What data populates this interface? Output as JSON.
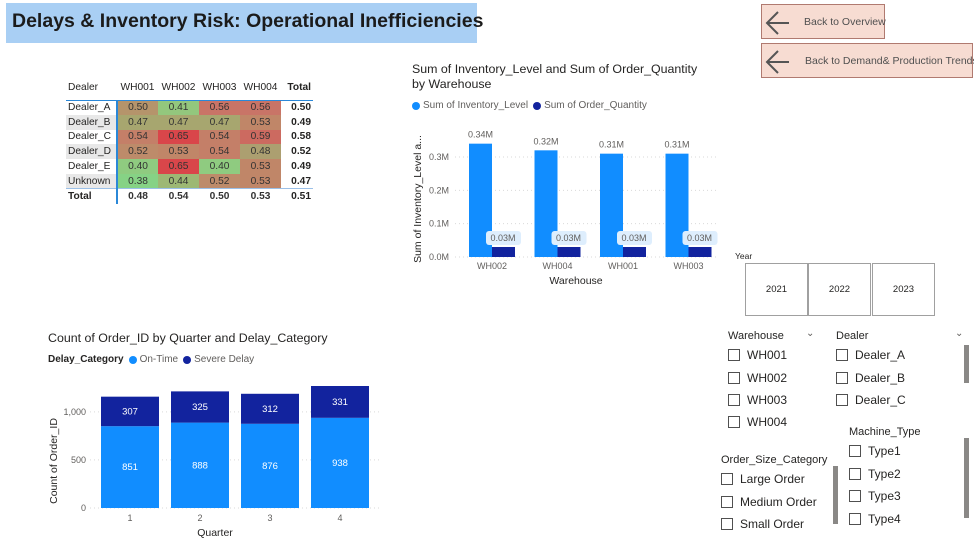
{
  "page": {
    "title": "Delays & Inventory Risk: Operational Inefficiencies"
  },
  "nav": {
    "back_overview": "Back to Overview",
    "back_demand": "Back to Demand& Production Trends"
  },
  "matrix": {
    "headers": [
      "Dealer",
      "WH001",
      "WH002",
      "WH003",
      "WH004",
      "Total"
    ],
    "rows": [
      {
        "label": "Dealer_A",
        "values": [
          "0.50",
          "0.41",
          "0.56",
          "0.56"
        ],
        "colors": [
          "#b5946b",
          "#93c77d",
          "#c97467",
          "#c97467"
        ],
        "total": "0.50"
      },
      {
        "label": "Dealer_B",
        "values": [
          "0.47",
          "0.47",
          "0.47",
          "0.53"
        ],
        "colors": [
          "#a7a66f",
          "#a7a66f",
          "#a7a66f",
          "#c08668"
        ],
        "total": "0.49"
      },
      {
        "label": "Dealer_C",
        "values": [
          "0.54",
          "0.65",
          "0.54",
          "0.59"
        ],
        "colors": [
          "#c47f68",
          "#d9464a",
          "#c47f68",
          "#cc6a60"
        ],
        "total": "0.58"
      },
      {
        "label": "Dealer_D",
        "values": [
          "0.52",
          "0.53",
          "0.54",
          "0.48"
        ],
        "colors": [
          "#bd8b6a",
          "#c08668",
          "#c47f68",
          "#ac9f70"
        ],
        "total": "0.52"
      },
      {
        "label": "Dealer_E",
        "values": [
          "0.40",
          "0.65",
          "0.40",
          "0.53"
        ],
        "colors": [
          "#8fcb80",
          "#d9464a",
          "#8fcb80",
          "#c08668"
        ],
        "total": "0.49"
      },
      {
        "label": "Unknown",
        "values": [
          "0.38",
          "0.44",
          "0.52",
          "0.53"
        ],
        "colors": [
          "#86d285",
          "#9db874",
          "#bd8b6a",
          "#c08668"
        ],
        "total": "0.47"
      }
    ],
    "total_row": {
      "label": "Total",
      "values": [
        "0.48",
        "0.54",
        "0.50",
        "0.53"
      ],
      "total": "0.51"
    }
  },
  "inventory_chart": {
    "title": "Sum of Inventory_Level and Sum of Order_Quantity by Warehouse",
    "legend": [
      "Sum of Inventory_Level",
      "Sum of Order_Quantity"
    ],
    "ylabel": "Sum of Inventory_Level a...",
    "xlabel": "Warehouse"
  },
  "orders_chart": {
    "title": "Count of Order_ID by Quarter and Delay_Category",
    "legend_title": "Delay_Category",
    "legend": [
      "On-Time",
      "Severe Delay"
    ],
    "ylabel": "Count of Order_ID",
    "xlabel": "Quarter"
  },
  "chart_data": [
    {
      "type": "bar",
      "title": "Sum of Inventory_Level and Sum of Order_Quantity by Warehouse",
      "xlabel": "Warehouse",
      "ylabel": "Sum of Inventory_Level a...",
      "categories": [
        "WH002",
        "WH004",
        "WH001",
        "WH003"
      ],
      "series": [
        {
          "name": "Sum of Inventory_Level",
          "values": [
            0.34,
            0.32,
            0.31,
            0.31
          ],
          "labels": [
            "0.34M",
            "0.32M",
            "0.31M",
            "0.31M"
          ],
          "color": "#118dff"
        },
        {
          "name": "Sum of Order_Quantity",
          "values": [
            0.03,
            0.03,
            0.03,
            0.03
          ],
          "labels": [
            "0.03M",
            "0.03M",
            "0.03M",
            "0.03M"
          ],
          "color": "#12239e"
        }
      ],
      "ylim": [
        0,
        0.36
      ],
      "yticks": [
        0,
        0.1,
        0.2,
        0.3
      ],
      "ytick_labels": [
        "0.0M",
        "0.1M",
        "0.2M",
        "0.3M"
      ],
      "grid": true,
      "legend": "top-left"
    },
    {
      "type": "bar",
      "stacked": true,
      "title": "Count of Order_ID by Quarter and Delay_Category",
      "xlabel": "Quarter",
      "ylabel": "Count of Order_ID",
      "categories": [
        "1",
        "2",
        "3",
        "4"
      ],
      "series": [
        {
          "name": "On-Time",
          "values": [
            851,
            888,
            876,
            938
          ],
          "color": "#118dff"
        },
        {
          "name": "Severe Delay",
          "values": [
            307,
            325,
            312,
            331
          ],
          "color": "#12239e"
        }
      ],
      "ylim": [
        0,
        1269
      ],
      "yticks": [
        0,
        500,
        1000
      ],
      "ytick_labels": [
        "0",
        "500",
        "1,000"
      ],
      "grid": true,
      "legend": "top-left"
    }
  ],
  "slicers": {
    "year": {
      "title": "Year",
      "options": [
        "2021",
        "2022",
        "2023"
      ]
    },
    "warehouse": {
      "title": "Warehouse",
      "options": [
        "WH001",
        "WH002",
        "WH003",
        "WH004"
      ]
    },
    "dealer": {
      "title": "Dealer",
      "options": [
        "Dealer_A",
        "Dealer_B",
        "Dealer_C"
      ]
    },
    "order_size": {
      "title": "Order_Size_Category",
      "options": [
        "Large Order",
        "Medium Order",
        "Small Order"
      ]
    },
    "machine_type": {
      "title": "Machine_Type",
      "options": [
        "Type1",
        "Type2",
        "Type3",
        "Type4"
      ]
    }
  },
  "icons": {
    "back_arrow": "arrow-left-icon",
    "dropdown": "chevron-down-icon"
  }
}
